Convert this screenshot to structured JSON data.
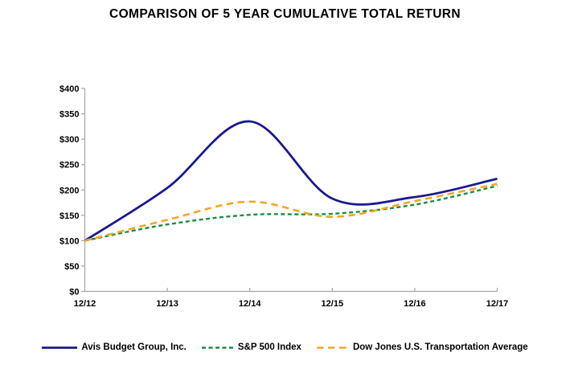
{
  "chart_data": {
    "type": "line",
    "title": "COMPARISON OF 5 YEAR CUMULATIVE TOTAL RETURN",
    "categories": [
      "12/12",
      "12/13",
      "12/14",
      "12/15",
      "12/16",
      "12/17"
    ],
    "series": [
      {
        "name": "Avis Budget Group, Inc.",
        "values": [
          100,
          204,
          335,
          183,
          186,
          222
        ],
        "color": "#1A1A8F",
        "line_style": "solid"
      },
      {
        "name": "S&P 500 Index",
        "values": [
          100,
          132,
          151,
          153,
          171,
          208
        ],
        "color": "#1E8C3E",
        "line_style": "dashed-short"
      },
      {
        "name": "Dow Jones U.S. Transportation Average",
        "values": [
          100,
          141,
          177,
          147,
          178,
          212
        ],
        "color": "#F5A623",
        "line_style": "dashed-long"
      }
    ],
    "xlabel": "",
    "ylabel": "",
    "ylim": [
      0,
      400
    ],
    "y_tick_step": 50,
    "y_tick_prefix": "$",
    "grid": false,
    "smoothed": true,
    "legend_position": "bottom",
    "axis_color": "#A6A6A6",
    "text_color": "#000000",
    "background": "#FFFFFF"
  }
}
